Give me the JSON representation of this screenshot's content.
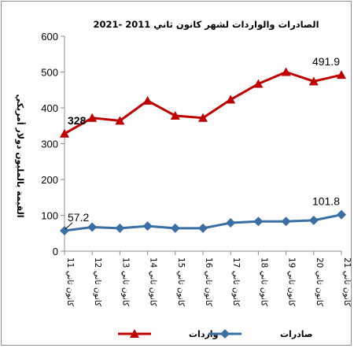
{
  "chart_data": {
    "type": "line",
    "title": "الصادرات والواردات لشهر كانون ثاني 2011 -2021",
    "ylabel": "القيمة بالمليون دولار أمريكي",
    "xlabel": "",
    "ylim": [
      0,
      600
    ],
    "yticks": [
      0,
      100,
      200,
      300,
      400,
      500,
      600
    ],
    "grid": false,
    "legend_position": "bottom",
    "categories": [
      "كانون ثاني 11",
      "كانون ثاني 12",
      "كانون ثاني 13",
      "كانون ثاني 14",
      "كانون ثاني 15",
      "كانون ثاني 16",
      "كانون ثاني 17",
      "كانون ثاني 18",
      "كانون ثاني 19",
      "كانون ثاني 20",
      "كانون ثاني 21"
    ],
    "series": [
      {
        "name": "واردات",
        "color": "#c00000",
        "marker": "triangle",
        "values": [
          328,
          372,
          364,
          420,
          378,
          372,
          423,
          467,
          500,
          474,
          491.9
        ],
        "data_labels": [
          {
            "index": 0,
            "text": "328",
            "bold": true
          },
          {
            "index": 10,
            "text": "491.9",
            "bold": false
          }
        ]
      },
      {
        "name": "صادرات",
        "color": "#3a6ea5",
        "marker": "diamond",
        "values": [
          57.2,
          67,
          64,
          70,
          64,
          64,
          79,
          83,
          83,
          86,
          101.8
        ],
        "data_labels": [
          {
            "index": 0,
            "text": "57.2",
            "bold": false
          },
          {
            "index": 10,
            "text": "101.8",
            "bold": false
          }
        ]
      }
    ]
  }
}
